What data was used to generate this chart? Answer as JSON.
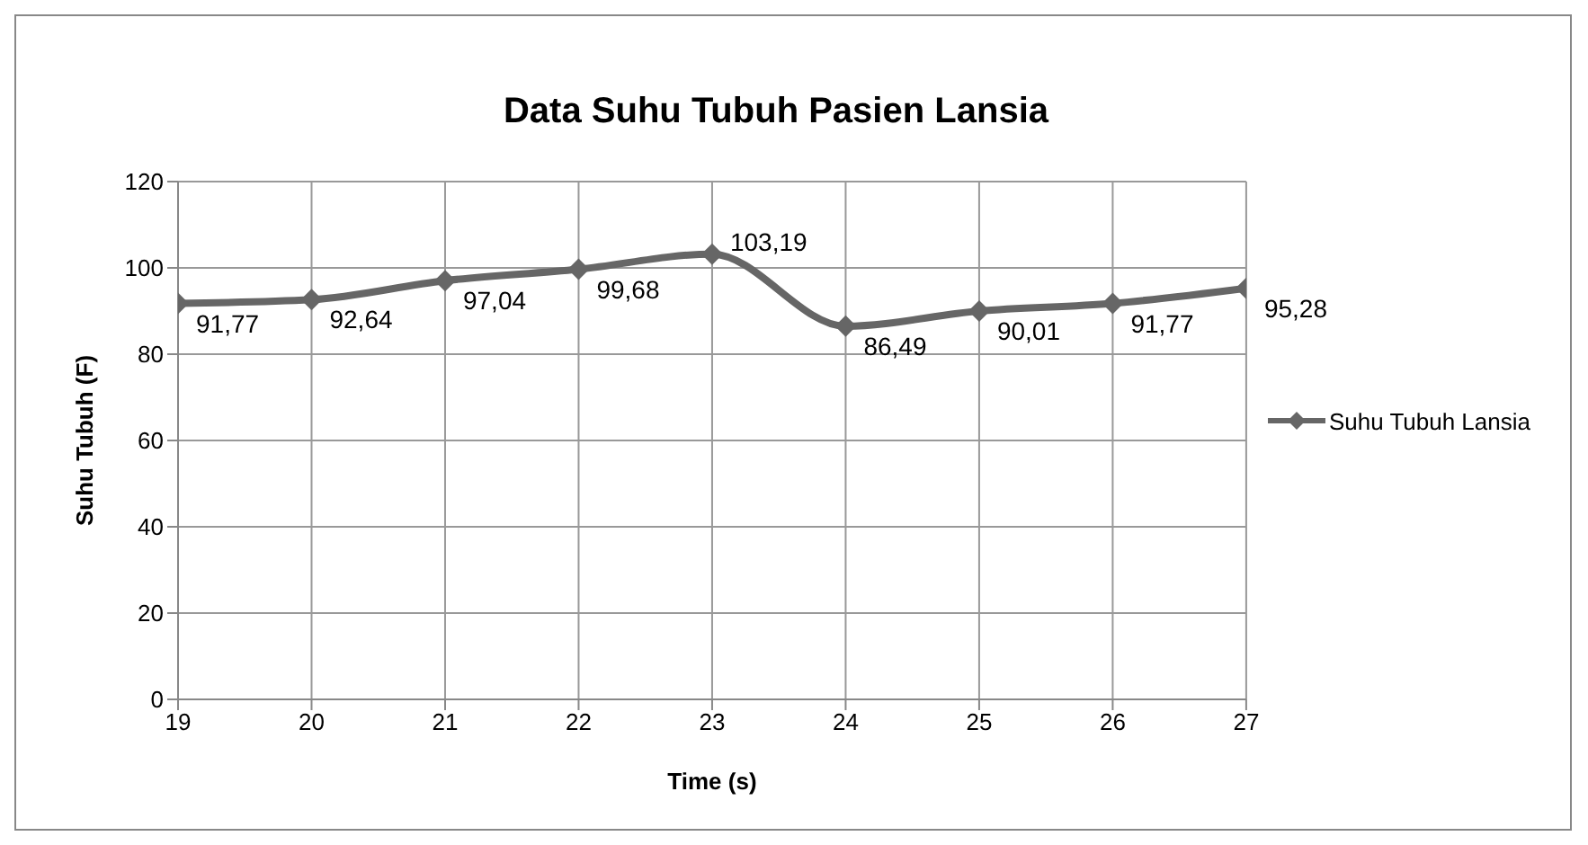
{
  "chart_data": {
    "type": "line",
    "title": "Data Suhu Tubuh Pasien Lansia",
    "xlabel": "Time (s)",
    "ylabel": "Suhu Tubuh (F)",
    "x": [
      19,
      20,
      21,
      22,
      23,
      24,
      25,
      26,
      27
    ],
    "series": [
      {
        "name": "Suhu Tubuh Lansia",
        "color": "#666666",
        "values": [
          91.77,
          92.64,
          97.04,
          99.68,
          103.19,
          86.49,
          90.01,
          91.77,
          95.28
        ],
        "value_labels": [
          "91,77",
          "92,64",
          "97,04",
          "99,68",
          "103,19",
          "86,49",
          "90,01",
          "91,77",
          "95,28"
        ]
      }
    ],
    "xlim": [
      19,
      27
    ],
    "xticks": [
      19,
      20,
      21,
      22,
      23,
      24,
      25,
      26,
      27
    ],
    "ylim": [
      0,
      120
    ],
    "yticks": [
      0,
      20,
      40,
      60,
      80,
      100,
      120
    ],
    "grid": true,
    "legend": "right",
    "marker": "diamond",
    "line_style": "solid"
  }
}
